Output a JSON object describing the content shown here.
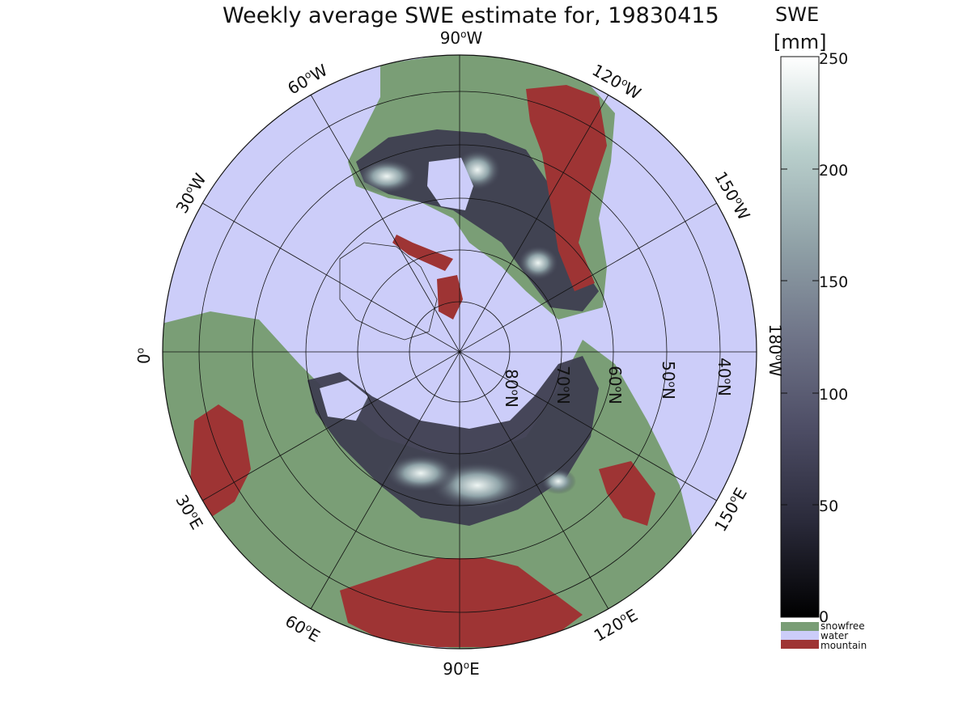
{
  "title": "Weekly average SWE estimate for, 19830415",
  "colorbar": {
    "title_line1": "SWE",
    "title_line2": "[mm]",
    "ticks": [
      {
        "value": 0,
        "label": "0"
      },
      {
        "value": 50,
        "label": "50"
      },
      {
        "value": 100,
        "label": "100"
      },
      {
        "value": 150,
        "label": "150"
      },
      {
        "value": 200,
        "label": "200"
      },
      {
        "value": 250,
        "label": "250"
      }
    ],
    "range": [
      0,
      250
    ],
    "gradient": [
      "#000000",
      "#2a2a3a",
      "#4e4e66",
      "#6f7488",
      "#8fa0a6",
      "#b9cfcc",
      "#ffffff"
    ]
  },
  "legend": [
    {
      "label": "snowfree",
      "color": "#7a9e76"
    },
    {
      "label": "water",
      "color": "#cccdf9"
    },
    {
      "label": "mountain",
      "color": "#9e3434"
    }
  ],
  "longitude_labels": [
    {
      "deg": "90",
      "dir": "W"
    },
    {
      "deg": "120",
      "dir": "W"
    },
    {
      "deg": "60",
      "dir": "W"
    },
    {
      "deg": "150",
      "dir": "W"
    },
    {
      "deg": "30",
      "dir": "W"
    },
    {
      "deg": "180",
      "dir": "W"
    },
    {
      "deg": "0",
      "dir": ""
    },
    {
      "deg": "150",
      "dir": "E"
    },
    {
      "deg": "30",
      "dir": "E"
    },
    {
      "deg": "120",
      "dir": "E"
    },
    {
      "deg": "60",
      "dir": "E"
    },
    {
      "deg": "90",
      "dir": "E"
    }
  ],
  "latitude_labels": [
    {
      "deg": "80",
      "dir": "N"
    },
    {
      "deg": "70",
      "dir": "N"
    },
    {
      "deg": "60",
      "dir": "N"
    },
    {
      "deg": "50",
      "dir": "N"
    },
    {
      "deg": "40",
      "dir": "N"
    }
  ],
  "map": {
    "projection": "north polar stereographic",
    "latitude_circles": [
      80,
      70,
      60,
      50,
      40
    ],
    "meridian_interval_deg": 30
  }
}
